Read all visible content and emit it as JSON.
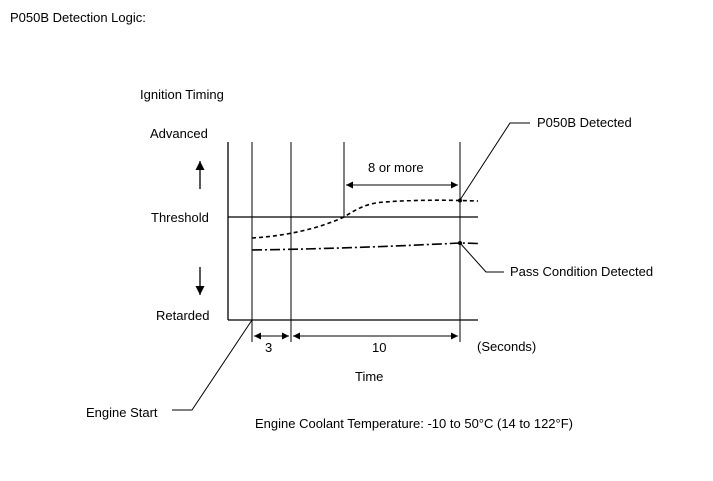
{
  "title": "P050B Detection Logic:",
  "y_axis": {
    "title": "Ignition Timing",
    "advanced": "Advanced",
    "threshold": "Threshold",
    "retarded": "Retarded"
  },
  "x_axis": {
    "label": "Time",
    "unit": "(Seconds)",
    "interval_start": "3",
    "interval_main": "10"
  },
  "annotations": {
    "duration": "8 or more",
    "detected": "P050B Detected",
    "pass": "Pass Condition Detected",
    "engine_start": "Engine Start"
  },
  "condition": "Engine Coolant Temperature: -10 to 50°C (14 to 122°F)"
}
